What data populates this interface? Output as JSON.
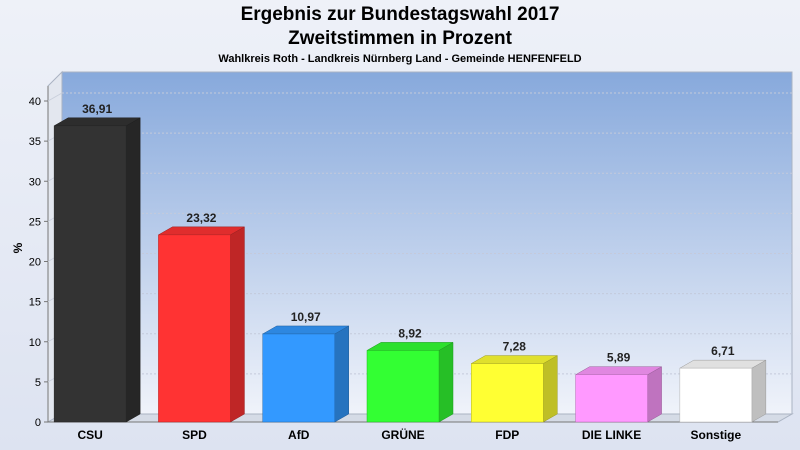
{
  "chart_data": {
    "type": "bar",
    "title": "Ergebnis zur Bundestagswahl 2017",
    "subtitle": "Zweitstimmen in Prozent",
    "caption": "Wahlkreis Roth - Landkreis Nürnberg Land - Gemeinde HENFENFELD",
    "ylabel": "%",
    "xlabel": "",
    "ylim": [
      0,
      40
    ],
    "yticks": [
      "0",
      "5",
      "10",
      "15",
      "20",
      "25",
      "30",
      "35",
      "40"
    ],
    "categories": [
      "CSU",
      "SPD",
      "AfD",
      "GRÜNE",
      "FDP",
      "DIE LINKE",
      "Sonstige"
    ],
    "values": [
      36.91,
      23.32,
      10.97,
      8.92,
      7.28,
      5.89,
      6.71
    ],
    "value_labels": [
      "36,91",
      "23,32",
      "10,97",
      "8,92",
      "7,28",
      "5,89",
      "6,71"
    ],
    "colors": [
      "#333333",
      "#ff3333",
      "#3399ff",
      "#33ff33",
      "#ffff33",
      "#ff99ff",
      "#ffffff"
    ],
    "grid": true,
    "legend": "none"
  }
}
